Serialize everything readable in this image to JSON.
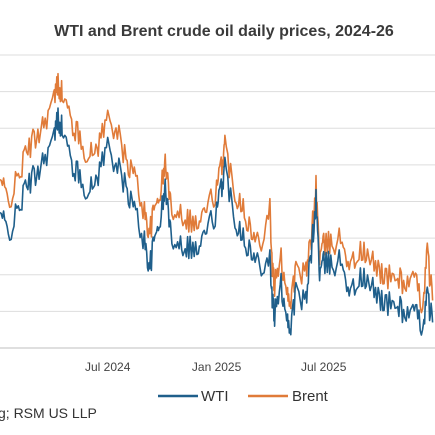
{
  "chart_data": {
    "type": "line",
    "title": "WTI and Brent crude oil daily prices, 2024-26",
    "source": "g; RSM US LLP",
    "xlabel": "",
    "ylabel": "",
    "x_tick_labels": [
      "Jul 2024",
      "Jan 2025",
      "Jul 2025"
    ],
    "x_ticks": [
      "2024-07-01",
      "2025-01-01",
      "2025-07-01"
    ],
    "xlim": [
      "2024-01-01",
      "2026-01-05"
    ],
    "ylim": [
      55,
      95
    ],
    "grid": true,
    "legend": "bottom",
    "colors": {
      "WTI": "#1f5f8b",
      "Brent": "#e07b39"
    },
    "x": [
      "2024-01-01",
      "2024-01-15",
      "2024-02-01",
      "2024-02-15",
      "2024-03-01",
      "2024-03-15",
      "2024-04-01",
      "2024-04-08",
      "2024-04-15",
      "2024-05-01",
      "2024-05-15",
      "2024-06-01",
      "2024-06-15",
      "2024-07-01",
      "2024-07-15",
      "2024-08-01",
      "2024-08-15",
      "2024-09-01",
      "2024-09-10",
      "2024-09-20",
      "2024-10-01",
      "2024-10-07",
      "2024-10-15",
      "2024-11-01",
      "2024-11-15",
      "2024-12-01",
      "2024-12-15",
      "2025-01-01",
      "2025-01-10",
      "2025-01-15",
      "2025-02-01",
      "2025-02-15",
      "2025-03-01",
      "2025-03-15",
      "2025-04-01",
      "2025-04-05",
      "2025-04-09",
      "2025-04-20",
      "2025-05-01",
      "2025-05-05",
      "2025-05-15",
      "2025-06-01",
      "2025-06-10",
      "2025-06-18",
      "2025-06-24",
      "2025-07-01",
      "2025-07-15",
      "2025-08-01",
      "2025-08-15",
      "2025-09-01",
      "2025-09-15",
      "2025-10-01",
      "2025-10-15",
      "2025-11-01",
      "2025-11-15",
      "2025-12-01",
      "2025-12-15",
      "2025-12-23",
      "2026-01-01"
    ],
    "series": [
      {
        "name": "WTI",
        "values": [
          73.5,
          70.5,
          73.8,
          77.2,
          78.6,
          81.0,
          83.5,
          86.5,
          85.0,
          80.2,
          78.2,
          76.2,
          78.9,
          82.8,
          80.1,
          76.8,
          74.0,
          69.5,
          66.0,
          70.5,
          74.0,
          77.1,
          70.6,
          69.3,
          69.0,
          68.3,
          71.3,
          73.5,
          77.3,
          79.8,
          72.6,
          70.7,
          67.6,
          66.5,
          67.5,
          61.7,
          59.4,
          63.5,
          59.2,
          57.5,
          62.6,
          61.0,
          68.2,
          75.1,
          65.3,
          66.5,
          66.4,
          67.0,
          62.3,
          64.7,
          63.5,
          62.3,
          60.9,
          61.0,
          59.8,
          59.6,
          58.2,
          62.0,
          58.5
        ]
      },
      {
        "name": "Brent",
        "values": [
          78.0,
          75.0,
          78.2,
          81.9,
          83.7,
          85.9,
          88.8,
          91.2,
          89.7,
          85.8,
          83.5,
          81.0,
          82.9,
          86.5,
          84.9,
          80.5,
          78.7,
          73.5,
          70.8,
          74.5,
          77.5,
          80.5,
          74.5,
          73.6,
          72.6,
          71.8,
          74.2,
          76.5,
          80.3,
          82.8,
          76.2,
          74.7,
          70.4,
          69.3,
          74.5,
          66.0,
          63.5,
          67.0,
          62.8,
          61.2,
          65.5,
          65.0,
          70.0,
          77.0,
          67.5,
          69.0,
          69.3,
          70.0,
          66.0,
          68.3,
          67.0,
          66.0,
          64.5,
          64.8,
          63.8,
          64.2,
          61.0,
          68.0,
          61.5
        ]
      }
    ]
  }
}
